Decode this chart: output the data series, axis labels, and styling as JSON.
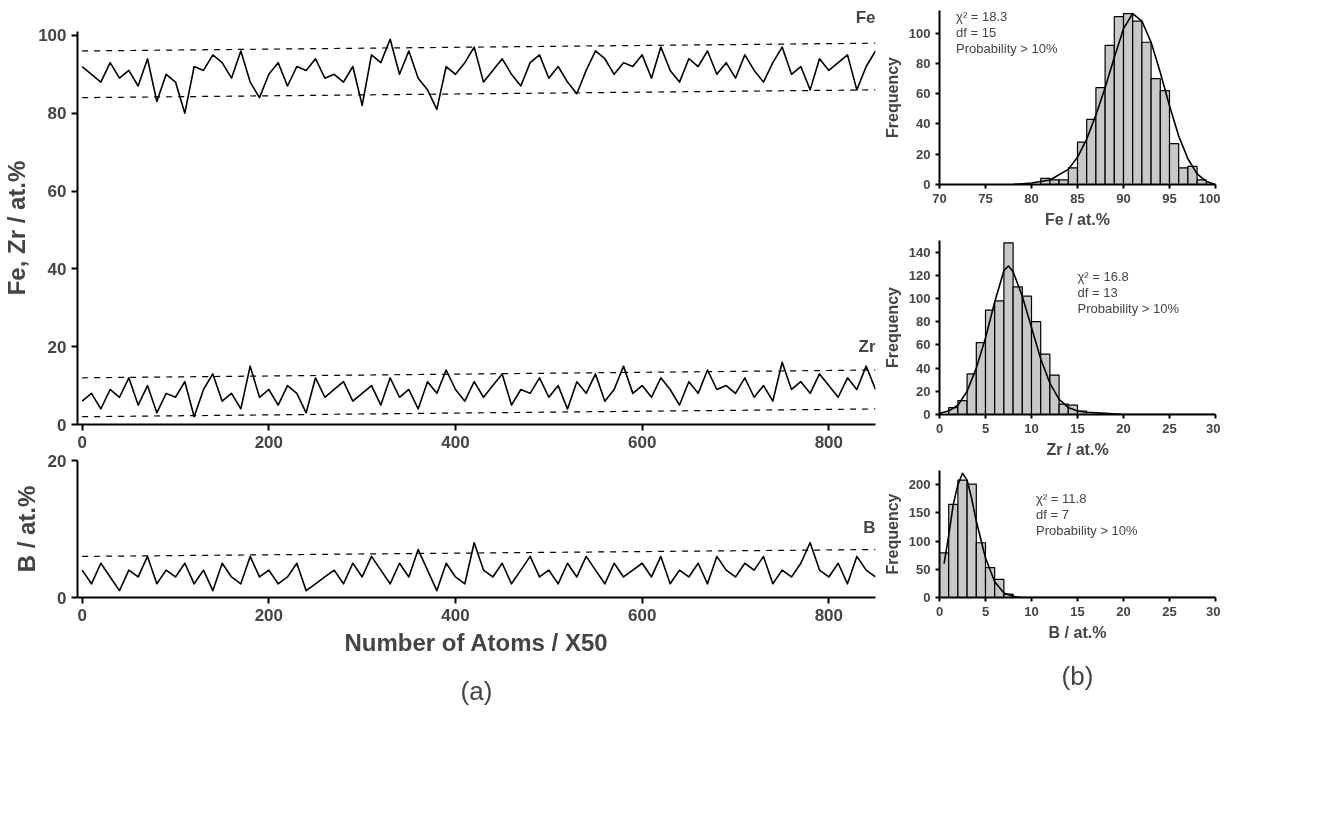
{
  "chart_data": [
    {
      "type": "line",
      "ylabel": "Fe, Zr / at.%",
      "xlim": [
        -5,
        850
      ],
      "xticks": [
        0,
        200,
        400,
        600,
        800
      ],
      "ylim": [
        0,
        101
      ],
      "yticks": [
        0,
        20,
        40,
        60,
        80,
        100
      ],
      "grid": false,
      "marker": "none",
      "series": [
        {
          "name": "Fe",
          "color": "#000000",
          "x": [
            0,
            10,
            20,
            30,
            40,
            50,
            60,
            70,
            80,
            90,
            100,
            110,
            120,
            130,
            140,
            150,
            160,
            170,
            180,
            190,
            200,
            210,
            220,
            230,
            240,
            250,
            260,
            270,
            280,
            290,
            300,
            310,
            320,
            330,
            340,
            350,
            360,
            370,
            380,
            390,
            400,
            410,
            420,
            430,
            440,
            450,
            460,
            470,
            480,
            490,
            500,
            510,
            520,
            530,
            540,
            550,
            560,
            570,
            580,
            590,
            600,
            610,
            620,
            630,
            640,
            650,
            660,
            670,
            680,
            690,
            700,
            710,
            720,
            730,
            740,
            750,
            760,
            770,
            780,
            790,
            800,
            810,
            820,
            830,
            840,
            850
          ],
          "values": [
            92,
            90,
            88,
            93,
            89,
            91,
            87,
            94,
            83,
            90,
            88,
            80,
            92,
            91,
            95,
            93,
            89,
            96,
            88,
            84,
            90,
            93,
            87,
            92,
            91,
            94,
            89,
            90,
            88,
            92,
            82,
            95,
            93,
            99,
            90,
            96,
            89,
            86,
            81,
            92,
            90,
            93,
            97,
            88,
            91,
            94,
            90,
            87,
            93,
            95,
            89,
            92,
            88,
            85,
            91,
            96,
            94,
            90,
            93,
            92,
            95,
            89,
            97,
            91,
            88,
            94,
            92,
            96,
            90,
            93,
            89,
            95,
            91,
            88,
            93,
            97,
            90,
            92,
            86,
            94,
            91,
            93,
            95,
            86,
            92,
            96
          ]
        },
        {
          "name": "Zr",
          "color": "#000000",
          "x": [
            0,
            10,
            20,
            30,
            40,
            50,
            60,
            70,
            80,
            90,
            100,
            110,
            120,
            130,
            140,
            150,
            160,
            170,
            180,
            190,
            200,
            210,
            220,
            230,
            240,
            250,
            260,
            270,
            280,
            290,
            300,
            310,
            320,
            330,
            340,
            350,
            360,
            370,
            380,
            390,
            400,
            410,
            420,
            430,
            440,
            450,
            460,
            470,
            480,
            490,
            500,
            510,
            520,
            530,
            540,
            550,
            560,
            570,
            580,
            590,
            600,
            610,
            620,
            630,
            640,
            650,
            660,
            670,
            680,
            690,
            700,
            710,
            720,
            730,
            740,
            750,
            760,
            770,
            780,
            790,
            800,
            810,
            820,
            830,
            840,
            850
          ],
          "values": [
            6,
            8,
            4,
            9,
            7,
            12,
            5,
            10,
            3,
            8,
            7,
            11,
            2,
            9,
            13,
            6,
            8,
            4,
            15,
            7,
            9,
            5,
            10,
            8,
            3,
            12,
            7,
            9,
            11,
            6,
            8,
            10,
            5,
            12,
            7,
            9,
            4,
            11,
            8,
            14,
            9,
            6,
            11,
            7,
            10,
            13,
            5,
            9,
            8,
            12,
            7,
            10,
            4,
            11,
            8,
            13,
            6,
            9,
            15,
            8,
            10,
            7,
            12,
            9,
            5,
            11,
            8,
            14,
            9,
            10,
            8,
            12,
            7,
            10,
            6,
            16,
            9,
            11,
            8,
            13,
            10,
            7,
            12,
            9,
            15,
            9
          ]
        },
        {
          "type": "line",
          "line_style": "dashed",
          "color": "#000000",
          "x": [
            0,
            850
          ],
          "values": [
            96,
            98
          ]
        },
        {
          "type": "line",
          "line_style": "dashed",
          "color": "#000000",
          "x": [
            0,
            850
          ],
          "values": [
            84,
            86
          ]
        },
        {
          "type": "line",
          "line_style": "dashed",
          "color": "#000000",
          "x": [
            0,
            850
          ],
          "values": [
            12,
            14
          ]
        },
        {
          "type": "line",
          "line_style": "dashed",
          "color": "#000000",
          "x": [
            0,
            850
          ],
          "values": [
            2,
            4
          ]
        }
      ]
    },
    {
      "type": "line",
      "ylabel": "B / at.%",
      "xlabel": "Number of Atoms / X50",
      "xlim": [
        -5,
        850
      ],
      "xticks": [
        0,
        200,
        400,
        600,
        800
      ],
      "ylim": [
        0,
        20
      ],
      "yticks": [
        0,
        20
      ],
      "grid": false,
      "marker": "none",
      "annotations": [
        "(a)"
      ],
      "series": [
        {
          "name": "B",
          "color": "#000000",
          "x": [
            0,
            10,
            20,
            30,
            40,
            50,
            60,
            70,
            80,
            90,
            100,
            110,
            120,
            130,
            140,
            150,
            160,
            170,
            180,
            190,
            200,
            210,
            220,
            230,
            240,
            250,
            260,
            270,
            280,
            290,
            300,
            310,
            320,
            330,
            340,
            350,
            360,
            370,
            380,
            390,
            400,
            410,
            420,
            430,
            440,
            450,
            460,
            470,
            480,
            490,
            500,
            510,
            520,
            530,
            540,
            550,
            560,
            570,
            580,
            590,
            600,
            610,
            620,
            630,
            640,
            650,
            660,
            670,
            680,
            690,
            700,
            710,
            720,
            730,
            740,
            750,
            760,
            770,
            780,
            790,
            800,
            810,
            820,
            830,
            840,
            850
          ],
          "values": [
            4,
            2,
            5,
            3,
            1,
            4,
            3,
            6,
            2,
            4,
            3,
            5,
            2,
            4,
            1,
            5,
            3,
            2,
            6,
            3,
            4,
            2,
            3,
            5,
            1,
            2,
            3,
            4,
            2,
            5,
            3,
            6,
            4,
            2,
            5,
            3,
            7,
            4,
            1,
            5,
            3,
            2,
            8,
            4,
            3,
            5,
            2,
            4,
            6,
            3,
            4,
            2,
            5,
            3,
            6,
            4,
            2,
            5,
            3,
            4,
            5,
            3,
            6,
            2,
            4,
            3,
            5,
            2,
            6,
            4,
            3,
            5,
            4,
            6,
            2,
            4,
            3,
            5,
            8,
            4,
            3,
            5,
            2,
            6,
            4,
            3
          ]
        },
        {
          "type": "line",
          "line_style": "dashed",
          "color": "#000000",
          "x": [
            0,
            850
          ],
          "values": [
            6,
            7
          ]
        }
      ]
    },
    {
      "type": "histogram",
      "xlabel": "Fe / at.%",
      "ylabel": "Frequency",
      "color": "#c8c8c8",
      "xlim": [
        70,
        100
      ],
      "xticks": [
        70,
        75,
        80,
        85,
        90,
        95,
        100
      ],
      "ylim": [
        0,
        115
      ],
      "yticks": [
        0,
        20,
        40,
        60,
        80,
        100
      ],
      "grid": false,
      "annotations": [
        "χ² = 18.3",
        "df = 15",
        "Probability > 10%"
      ],
      "bins": [
        79,
        80,
        81,
        82,
        83,
        84,
        85,
        86,
        87,
        88,
        89,
        90,
        91,
        92,
        93,
        94,
        95,
        96,
        97,
        98,
        99
      ],
      "values": [
        null,
        null,
        4,
        3,
        3,
        11,
        28,
        43,
        64,
        92,
        111,
        113,
        108,
        94,
        70,
        62,
        27,
        11,
        12,
        3
      ],
      "series": [
        {
          "type": "line",
          "color": "#000000",
          "x": [
            78,
            80,
            82,
            84,
            85,
            86,
            87,
            88,
            89,
            90,
            91,
            92,
            93,
            94,
            95,
            96,
            97,
            98,
            99,
            100
          ],
          "values": [
            0,
            1,
            3,
            10,
            18,
            30,
            46,
            64,
            84,
            103,
            113,
            108,
            94,
            74,
            52,
            32,
            17,
            7,
            2,
            0
          ]
        }
      ]
    },
    {
      "type": "histogram",
      "xlabel": "Zr / at.%",
      "ylabel": "Frequency",
      "color": "#c8c8c8",
      "xlim": [
        0,
        30
      ],
      "xticks": [
        0,
        5,
        10,
        15,
        20,
        25,
        30
      ],
      "ylim": [
        0,
        150
      ],
      "yticks": [
        0,
        20,
        40,
        60,
        80,
        100,
        120,
        140
      ],
      "grid": false,
      "annotations": [
        "χ² = 16.8",
        "df = 13",
        "Probability > 10%"
      ],
      "bins": [
        1,
        2,
        3,
        4,
        5,
        6,
        7,
        8,
        9,
        10,
        11,
        12,
        13,
        14,
        15,
        16
      ],
      "values": [
        6,
        12,
        35,
        62,
        90,
        98,
        148,
        110,
        102,
        80,
        52,
        34,
        9,
        8,
        3
      ],
      "series": [
        {
          "type": "line",
          "color": "#000000",
          "x": [
            0,
            1,
            2,
            3,
            4,
            5,
            6,
            7,
            7.5,
            8,
            9,
            10,
            11,
            12,
            13,
            14,
            15,
            16,
            18,
            20,
            30
          ],
          "values": [
            1,
            3,
            8,
            20,
            40,
            66,
            97,
            124,
            128,
            123,
            102,
            75,
            48,
            27,
            13,
            6,
            3,
            2,
            1,
            0,
            0
          ]
        }
      ]
    },
    {
      "type": "histogram",
      "xlabel": "B / at.%",
      "ylabel": "Frequency",
      "color": "#c8c8c8",
      "xlim": [
        0,
        30
      ],
      "xticks": [
        0,
        5,
        10,
        15,
        20,
        25,
        30
      ],
      "ylim": [
        0,
        225
      ],
      "yticks": [
        0,
        50,
        100,
        150,
        200
      ],
      "grid": false,
      "annotations": [
        "χ² = 11.8",
        "df = 7",
        "Probability > 10%",
        "(b)"
      ],
      "bins": [
        0,
        1,
        2,
        3,
        4,
        5,
        6,
        7,
        8
      ],
      "values": [
        79,
        165,
        208,
        201,
        97,
        53,
        32,
        6
      ],
      "series": [
        {
          "type": "line",
          "color": "#000000",
          "x": [
            0.5,
            1,
            1.5,
            2,
            2.5,
            3,
            3.5,
            4,
            5,
            6,
            7,
            8,
            9,
            10,
            30
          ],
          "values": [
            60,
            110,
            165,
            200,
            220,
            208,
            175,
            135,
            70,
            28,
            8,
            2,
            0,
            0,
            0
          ]
        }
      ]
    }
  ]
}
